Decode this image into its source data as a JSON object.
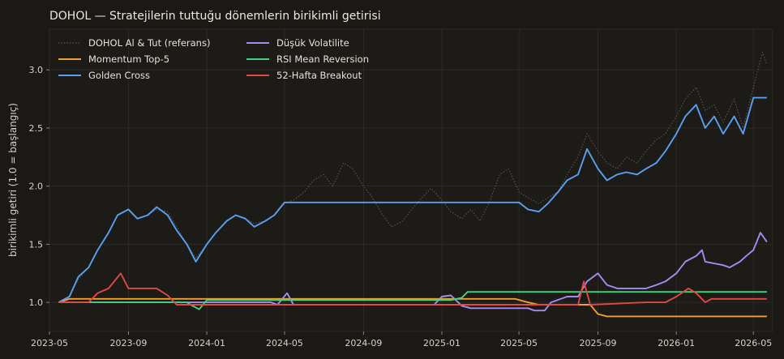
{
  "chart_data": {
    "type": "line",
    "title": "DOHOL — Stratejilerin tuttuğu dönemlerin birikimli getirisi",
    "xlabel": "",
    "ylabel": "birikimli getiri (1.0 = başlangıç)",
    "xlim": [
      "2023-05-01",
      "2026-05-31"
    ],
    "ylim": [
      0.75,
      3.35
    ],
    "x_ticks": [
      "2023-05",
      "2023-09",
      "2024-01",
      "2024-05",
      "2024-09",
      "2025-01",
      "2025-05",
      "2025-09",
      "2026-01",
      "2026-05"
    ],
    "y_ticks": [
      "1.0",
      "1.5",
      "2.0",
      "2.5",
      "3.0"
    ],
    "grid": true,
    "legend_position": "top-left",
    "colors": {
      "background": "#1b1915",
      "plot_background": "#1d1b17",
      "grid": "#2c2a25",
      "axis_text": "#d6d2c8"
    },
    "series": [
      {
        "name": "DOHOL Al & Tut (referans)",
        "color": "#5a5650",
        "style": "dotted",
        "points": [
          [
            "2023-05-15",
            1.0
          ],
          [
            "2023-06-01",
            1.05
          ],
          [
            "2023-06-15",
            1.2
          ],
          [
            "2023-07-01",
            1.3
          ],
          [
            "2023-07-15",
            1.45
          ],
          [
            "2023-08-01",
            1.6
          ],
          [
            "2023-08-15",
            1.75
          ],
          [
            "2023-09-01",
            1.8
          ],
          [
            "2023-09-15",
            1.72
          ],
          [
            "2023-10-01",
            1.75
          ],
          [
            "2023-10-15",
            1.8
          ],
          [
            "2023-11-01",
            1.78
          ],
          [
            "2023-11-15",
            1.65
          ],
          [
            "2023-12-01",
            1.5
          ],
          [
            "2023-12-15",
            1.38
          ],
          [
            "2024-01-01",
            1.5
          ],
          [
            "2024-01-15",
            1.6
          ],
          [
            "2024-02-01",
            1.7
          ],
          [
            "2024-02-15",
            1.75
          ],
          [
            "2024-03-01",
            1.72
          ],
          [
            "2024-03-15",
            1.68
          ],
          [
            "2024-04-01",
            1.7
          ],
          [
            "2024-04-15",
            1.75
          ],
          [
            "2024-05-01",
            1.85
          ],
          [
            "2024-05-15",
            1.88
          ],
          [
            "2024-06-01",
            1.95
          ],
          [
            "2024-06-15",
            2.05
          ],
          [
            "2024-07-01",
            2.1
          ],
          [
            "2024-07-15",
            2.0
          ],
          [
            "2024-08-01",
            2.2
          ],
          [
            "2024-08-15",
            2.15
          ],
          [
            "2024-09-01",
            2.0
          ],
          [
            "2024-09-15",
            1.9
          ],
          [
            "2024-10-01",
            1.75
          ],
          [
            "2024-10-15",
            1.65
          ],
          [
            "2024-11-01",
            1.7
          ],
          [
            "2024-11-15",
            1.8
          ],
          [
            "2024-12-01",
            1.9
          ],
          [
            "2024-12-15",
            1.98
          ],
          [
            "2025-01-01",
            1.88
          ],
          [
            "2025-01-15",
            1.78
          ],
          [
            "2025-02-01",
            1.72
          ],
          [
            "2025-02-15",
            1.8
          ],
          [
            "2025-03-01",
            1.7
          ],
          [
            "2025-03-15",
            1.85
          ],
          [
            "2025-04-01",
            2.1
          ],
          [
            "2025-04-15",
            2.15
          ],
          [
            "2025-05-01",
            1.95
          ],
          [
            "2025-05-15",
            1.9
          ],
          [
            "2025-06-01",
            1.85
          ],
          [
            "2025-06-15",
            1.9
          ],
          [
            "2025-07-01",
            1.95
          ],
          [
            "2025-07-15",
            2.1
          ],
          [
            "2025-08-01",
            2.25
          ],
          [
            "2025-08-15",
            2.45
          ],
          [
            "2025-09-01",
            2.3
          ],
          [
            "2025-09-15",
            2.2
          ],
          [
            "2025-10-01",
            2.15
          ],
          [
            "2025-10-15",
            2.25
          ],
          [
            "2025-11-01",
            2.2
          ],
          [
            "2025-11-15",
            2.3
          ],
          [
            "2025-12-01",
            2.4
          ],
          [
            "2025-12-15",
            2.45
          ],
          [
            "2026-01-01",
            2.6
          ],
          [
            "2026-01-15",
            2.75
          ],
          [
            "2026-02-01",
            2.85
          ],
          [
            "2026-02-15",
            2.65
          ],
          [
            "2026-03-01",
            2.7
          ],
          [
            "2026-03-15",
            2.55
          ],
          [
            "2026-04-01",
            2.75
          ],
          [
            "2026-04-15",
            2.5
          ],
          [
            "2026-05-01",
            2.85
          ],
          [
            "2026-05-15",
            3.15
          ],
          [
            "2026-05-22",
            3.05
          ]
        ]
      },
      {
        "name": "Momentum Top-5",
        "color": "#f0a030",
        "style": "solid",
        "points": [
          [
            "2023-05-15",
            1.0
          ],
          [
            "2023-06-01",
            1.03
          ],
          [
            "2025-04-25",
            1.03
          ],
          [
            "2025-05-15",
            1.0
          ],
          [
            "2025-06-01",
            0.98
          ],
          [
            "2025-08-20",
            0.98
          ],
          [
            "2025-09-01",
            0.9
          ],
          [
            "2025-09-15",
            0.88
          ],
          [
            "2026-05-22",
            0.88
          ]
        ]
      },
      {
        "name": "Golden Cross",
        "color": "#5aa0f0",
        "style": "solid",
        "points": [
          [
            "2023-05-15",
            1.0
          ],
          [
            "2023-06-01",
            1.05
          ],
          [
            "2023-06-15",
            1.22
          ],
          [
            "2023-07-01",
            1.3
          ],
          [
            "2023-07-15",
            1.45
          ],
          [
            "2023-08-01",
            1.6
          ],
          [
            "2023-08-15",
            1.75
          ],
          [
            "2023-09-01",
            1.8
          ],
          [
            "2023-09-15",
            1.72
          ],
          [
            "2023-10-01",
            1.75
          ],
          [
            "2023-10-15",
            1.82
          ],
          [
            "2023-11-01",
            1.75
          ],
          [
            "2023-11-15",
            1.62
          ],
          [
            "2023-12-01",
            1.5
          ],
          [
            "2023-12-15",
            1.35
          ],
          [
            "2024-01-01",
            1.5
          ],
          [
            "2024-01-15",
            1.6
          ],
          [
            "2024-02-01",
            1.7
          ],
          [
            "2024-02-15",
            1.75
          ],
          [
            "2024-03-01",
            1.72
          ],
          [
            "2024-03-15",
            1.65
          ],
          [
            "2024-04-01",
            1.7
          ],
          [
            "2024-04-15",
            1.75
          ],
          [
            "2024-05-01",
            1.86
          ],
          [
            "2025-05-01",
            1.86
          ],
          [
            "2025-05-15",
            1.8
          ],
          [
            "2025-06-01",
            1.78
          ],
          [
            "2025-06-15",
            1.85
          ],
          [
            "2025-07-01",
            1.95
          ],
          [
            "2025-07-15",
            2.05
          ],
          [
            "2025-08-01",
            2.1
          ],
          [
            "2025-08-15",
            2.32
          ],
          [
            "2025-09-01",
            2.15
          ],
          [
            "2025-09-15",
            2.05
          ],
          [
            "2025-10-01",
            2.1
          ],
          [
            "2025-10-15",
            2.12
          ],
          [
            "2025-11-01",
            2.1
          ],
          [
            "2025-11-15",
            2.15
          ],
          [
            "2025-12-01",
            2.2
          ],
          [
            "2025-12-15",
            2.3
          ],
          [
            "2026-01-01",
            2.45
          ],
          [
            "2026-01-15",
            2.6
          ],
          [
            "2026-02-01",
            2.7
          ],
          [
            "2026-02-15",
            2.5
          ],
          [
            "2026-03-01",
            2.6
          ],
          [
            "2026-03-15",
            2.45
          ],
          [
            "2026-04-01",
            2.6
          ],
          [
            "2026-04-15",
            2.45
          ],
          [
            "2026-05-01",
            2.76
          ],
          [
            "2026-05-22",
            2.76
          ]
        ]
      },
      {
        "name": "Düşük Volatilite",
        "color": "#a48cf0",
        "style": "solid",
        "points": [
          [
            "2023-05-15",
            1.0
          ],
          [
            "2024-04-10",
            1.0
          ],
          [
            "2024-04-20",
            0.98
          ],
          [
            "2024-05-05",
            1.08
          ],
          [
            "2024-05-15",
            0.98
          ],
          [
            "2024-12-20",
            0.98
          ],
          [
            "2025-01-01",
            1.05
          ],
          [
            "2025-01-15",
            1.06
          ],
          [
            "2025-02-01",
            0.97
          ],
          [
            "2025-02-15",
            0.95
          ],
          [
            "2025-05-15",
            0.95
          ],
          [
            "2025-05-25",
            0.93
          ],
          [
            "2025-06-10",
            0.93
          ],
          [
            "2025-06-20",
            1.0
          ],
          [
            "2025-07-15",
            1.05
          ],
          [
            "2025-08-01",
            1.05
          ],
          [
            "2025-08-15",
            1.18
          ],
          [
            "2025-09-01",
            1.25
          ],
          [
            "2025-09-15",
            1.15
          ],
          [
            "2025-10-01",
            1.12
          ],
          [
            "2025-10-15",
            1.12
          ],
          [
            "2025-11-15",
            1.12
          ],
          [
            "2025-12-01",
            1.15
          ],
          [
            "2025-12-15",
            1.18
          ],
          [
            "2026-01-01",
            1.25
          ],
          [
            "2026-01-15",
            1.35
          ],
          [
            "2026-02-01",
            1.4
          ],
          [
            "2026-02-10",
            1.45
          ],
          [
            "2026-02-15",
            1.35
          ],
          [
            "2026-03-15",
            1.32
          ],
          [
            "2026-03-25",
            1.3
          ],
          [
            "2026-04-10",
            1.35
          ],
          [
            "2026-04-20",
            1.4
          ],
          [
            "2026-05-01",
            1.45
          ],
          [
            "2026-05-12",
            1.6
          ],
          [
            "2026-05-22",
            1.52
          ]
        ]
      },
      {
        "name": "RSI Mean Reversion",
        "color": "#3ed47a",
        "style": "solid",
        "points": [
          [
            "2023-05-15",
            1.0
          ],
          [
            "2023-12-01",
            1.0
          ],
          [
            "2023-12-10",
            0.97
          ],
          [
            "2023-12-20",
            0.94
          ],
          [
            "2024-01-01",
            1.02
          ],
          [
            "2025-01-15",
            1.02
          ],
          [
            "2025-02-01",
            1.04
          ],
          [
            "2025-02-10",
            1.09
          ],
          [
            "2026-05-22",
            1.09
          ]
        ]
      },
      {
        "name": "52-Hafta Breakout",
        "color": "#e04840",
        "style": "solid",
        "points": [
          [
            "2023-05-15",
            1.0
          ],
          [
            "2023-07-01",
            1.0
          ],
          [
            "2023-07-15",
            1.08
          ],
          [
            "2023-08-01",
            1.12
          ],
          [
            "2023-08-20",
            1.25
          ],
          [
            "2023-09-01",
            1.12
          ],
          [
            "2023-10-15",
            1.12
          ],
          [
            "2023-11-01",
            1.06
          ],
          [
            "2023-11-15",
            0.98
          ],
          [
            "2025-07-15",
            0.98
          ],
          [
            "2025-08-01",
            0.98
          ],
          [
            "2025-08-10",
            1.18
          ],
          [
            "2025-08-20",
            0.98
          ],
          [
            "2025-11-15",
            1.0
          ],
          [
            "2025-12-15",
            1.0
          ],
          [
            "2026-01-01",
            1.05
          ],
          [
            "2026-01-20",
            1.12
          ],
          [
            "2026-02-01",
            1.08
          ],
          [
            "2026-02-15",
            1.0
          ],
          [
            "2026-02-25",
            1.03
          ],
          [
            "2026-05-22",
            1.03
          ]
        ]
      }
    ]
  }
}
